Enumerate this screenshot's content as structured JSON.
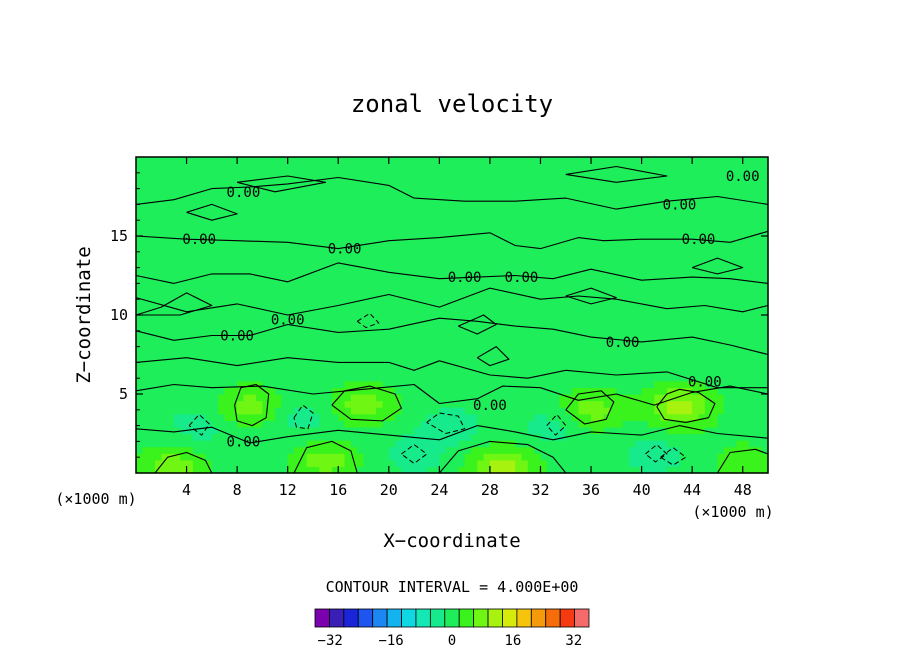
{
  "chart_data": {
    "type": "heatmap",
    "title": "zonal velocity",
    "xlabel": "X−coordinate",
    "ylabel": "Z−coordinate",
    "x_unit_left": "(×1000 m)",
    "x_unit_right": "(×1000 m)",
    "xlim": [
      0,
      50
    ],
    "ylim": [
      0,
      20
    ],
    "x_ticks": [
      4,
      8,
      12,
      16,
      20,
      24,
      28,
      32,
      36,
      40,
      44,
      48
    ],
    "y_ticks": [
      5,
      10,
      15
    ],
    "contour_interval_text": "CONTOUR INTERVAL = 4.000E+00",
    "contour_label": "0.00",
    "colorbar": {
      "tick_labels": [
        "−32",
        "−16",
        "0",
        "16",
        "32"
      ],
      "tick_values": [
        -32,
        -16,
        0,
        16,
        32
      ],
      "levels": [
        -36,
        -32,
        -28,
        -24,
        -20,
        -16,
        -12,
        -8,
        -4,
        0,
        4,
        8,
        12,
        16,
        20,
        24,
        28,
        32,
        36
      ],
      "colors": [
        "#7a00b0",
        "#3a1fb6",
        "#1a24d8",
        "#1f55ef",
        "#1b87f2",
        "#12b3ef",
        "#10d8e2",
        "#15e8b4",
        "#17ea8a",
        "#1eee5a",
        "#3af21c",
        "#6ff612",
        "#a7f20e",
        "#d6ea0c",
        "#f5c40b",
        "#f59a0a",
        "#f56e0a",
        "#f53a12",
        "#f56a6a"
      ]
    },
    "field_features": [
      {
        "x": 43,
        "z": 4.2,
        "value": 12
      },
      {
        "x": 29,
        "z": 0.4,
        "value": 12
      },
      {
        "x": 18,
        "z": 4.3,
        "value": 8
      },
      {
        "x": 9,
        "z": 4.2,
        "value": 8
      },
      {
        "x": 36,
        "z": 4.0,
        "value": 8
      },
      {
        "x": 15,
        "z": 0.8,
        "value": 8
      },
      {
        "x": 3,
        "z": 0.5,
        "value": 8
      },
      {
        "x": 48,
        "z": 0.8,
        "value": 4
      },
      {
        "x": 25,
        "z": 3.0,
        "value": -4
      },
      {
        "x": 13,
        "z": 3.5,
        "value": -4
      },
      {
        "x": 5,
        "z": 3.0,
        "value": -4
      },
      {
        "x": 33,
        "z": 3.0,
        "value": -4
      },
      {
        "x": 22,
        "z": 1.2,
        "value": -4
      },
      {
        "x": 41,
        "z": 1.2,
        "value": -4
      }
    ],
    "contour_label_positions": [
      {
        "x": 8.5,
        "z": 17.8
      },
      {
        "x": 5.0,
        "z": 14.8
      },
      {
        "x": 16.5,
        "z": 14.2
      },
      {
        "x": 26.0,
        "z": 12.4
      },
      {
        "x": 30.5,
        "z": 12.4
      },
      {
        "x": 12.0,
        "z": 9.7
      },
      {
        "x": 8.0,
        "z": 8.7
      },
      {
        "x": 38.5,
        "z": 8.3
      },
      {
        "x": 28.0,
        "z": 4.3
      },
      {
        "x": 45.0,
        "z": 5.8
      },
      {
        "x": 48.0,
        "z": 18.8
      },
      {
        "x": 43.0,
        "z": 17.0
      },
      {
        "x": 44.5,
        "z": 14.8
      },
      {
        "x": 8.5,
        "z": 2.0
      }
    ],
    "contour_lines": [
      [
        [
          0,
          17.0
        ],
        [
          3,
          17.3
        ],
        [
          6,
          18.0
        ],
        [
          9,
          18.1
        ],
        [
          12,
          18.3
        ],
        [
          16,
          18.7
        ],
        [
          20,
          18.2
        ],
        [
          22,
          17.4
        ]
      ],
      [
        [
          22,
          17.4
        ],
        [
          26,
          17.2
        ],
        [
          30,
          17.2
        ],
        [
          34,
          17.4
        ],
        [
          38,
          16.7
        ],
        [
          42,
          17.2
        ],
        [
          46,
          17.5
        ],
        [
          50,
          17.0
        ]
      ],
      [
        [
          0,
          15.0
        ],
        [
          4,
          14.8
        ],
        [
          8,
          14.7
        ],
        [
          12,
          14.6
        ],
        [
          16,
          14.2
        ],
        [
          20,
          14.7
        ],
        [
          24,
          14.9
        ],
        [
          28,
          15.2
        ]
      ],
      [
        [
          28,
          15.2
        ],
        [
          30,
          14.4
        ],
        [
          32,
          14.2
        ],
        [
          35,
          14.9
        ],
        [
          37,
          14.7
        ],
        [
          40,
          14.8
        ],
        [
          44,
          14.8
        ],
        [
          47,
          14.6
        ],
        [
          50,
          15.3
        ]
      ],
      [
        [
          0,
          12.5
        ],
        [
          3,
          12.0
        ],
        [
          6,
          12.6
        ],
        [
          9,
          12.6
        ],
        [
          12,
          12.1
        ],
        [
          16,
          13.3
        ],
        [
          20,
          12.7
        ],
        [
          24,
          12.3
        ],
        [
          27,
          12.4
        ]
      ],
      [
        [
          27,
          12.4
        ],
        [
          30,
          12.5
        ],
        [
          33,
          12.3
        ],
        [
          36,
          12.9
        ],
        [
          40,
          12.2
        ],
        [
          44,
          12.4
        ],
        [
          47,
          12.3
        ],
        [
          50,
          12.0
        ]
      ],
      [
        [
          0,
          11.1
        ],
        [
          4,
          10.2
        ],
        [
          8,
          10.7
        ],
        [
          12,
          10.0
        ],
        [
          16,
          10.6
        ],
        [
          20,
          11.3
        ],
        [
          24,
          10.5
        ],
        [
          28,
          11.7
        ],
        [
          32,
          11.0
        ]
      ],
      [
        [
          32,
          11.0
        ],
        [
          35,
          11.2
        ],
        [
          38,
          11.0
        ],
        [
          42,
          10.4
        ],
        [
          45,
          10.6
        ],
        [
          48,
          10.2
        ],
        [
          50,
          10.6
        ]
      ],
      [
        [
          0,
          9.0
        ],
        [
          3,
          8.4
        ],
        [
          6,
          8.7
        ],
        [
          9,
          8.7
        ],
        [
          12,
          9.4
        ],
        [
          16,
          8.9
        ],
        [
          20,
          9.1
        ],
        [
          24,
          9.8
        ],
        [
          27,
          9.6
        ]
      ],
      [
        [
          27,
          9.6
        ],
        [
          30,
          9.3
        ],
        [
          33,
          9.1
        ],
        [
          36,
          8.6
        ],
        [
          40,
          8.3
        ],
        [
          44,
          8.6
        ],
        [
          47,
          8.1
        ],
        [
          50,
          7.5
        ]
      ],
      [
        [
          0,
          7.0
        ],
        [
          4,
          7.3
        ],
        [
          8,
          6.8
        ],
        [
          12,
          7.3
        ],
        [
          16,
          7.0
        ],
        [
          20,
          7.0
        ],
        [
          22,
          6.5
        ],
        [
          24,
          7.1
        ]
      ],
      [
        [
          24,
          7.1
        ],
        [
          28,
          6.2
        ],
        [
          31,
          6.0
        ],
        [
          34,
          6.5
        ],
        [
          38,
          6.2
        ],
        [
          42,
          6.4
        ],
        [
          46,
          5.4
        ],
        [
          50,
          5.4
        ]
      ],
      [
        [
          0,
          5.2
        ],
        [
          3,
          5.6
        ],
        [
          6,
          5.4
        ],
        [
          10,
          5.5
        ],
        [
          14,
          5.0
        ],
        [
          18,
          5.3
        ],
        [
          22,
          5.6
        ],
        [
          24,
          4.4
        ],
        [
          27,
          4.7
        ]
      ],
      [
        [
          27,
          4.7
        ],
        [
          29,
          5.5
        ],
        [
          32,
          5.4
        ],
        [
          35,
          4.6
        ],
        [
          38,
          5.0
        ],
        [
          41,
          4.3
        ],
        [
          44,
          5.1
        ],
        [
          47,
          5.5
        ],
        [
          50,
          5.0
        ]
      ],
      [
        [
          0,
          2.8
        ],
        [
          3,
          2.6
        ],
        [
          6,
          2.9
        ],
        [
          9,
          1.9
        ],
        [
          12,
          2.3
        ],
        [
          16,
          2.7
        ],
        [
          20,
          2.4
        ],
        [
          24,
          2.1
        ],
        [
          27,
          3.0
        ]
      ],
      [
        [
          27,
          3.0
        ],
        [
          30,
          2.6
        ],
        [
          33,
          2.1
        ],
        [
          36,
          2.6
        ],
        [
          40,
          2.4
        ],
        [
          43,
          3.0
        ],
        [
          46,
          2.5
        ],
        [
          50,
          2.2
        ]
      ],
      [
        [
          41.2,
          4.2
        ],
        [
          42,
          5.0
        ],
        [
          43,
          5.3
        ],
        [
          44.5,
          5.1
        ],
        [
          45.8,
          4.4
        ],
        [
          45.3,
          3.5
        ],
        [
          43.5,
          3.2
        ],
        [
          41.8,
          3.4
        ],
        [
          41.2,
          4.2
        ]
      ],
      [
        [
          15.5,
          4.3
        ],
        [
          16.5,
          5.2
        ],
        [
          18.5,
          5.5
        ],
        [
          20.5,
          5.0
        ],
        [
          21.0,
          4.1
        ],
        [
          19.5,
          3.3
        ],
        [
          17.0,
          3.4
        ],
        [
          15.5,
          4.3
        ]
      ],
      [
        [
          7.8,
          4.3
        ],
        [
          8.3,
          5.4
        ],
        [
          9.5,
          5.6
        ],
        [
          10.5,
          5.0
        ],
        [
          10.3,
          3.5
        ],
        [
          9.2,
          3.0
        ],
        [
          8.0,
          3.3
        ],
        [
          7.8,
          4.3
        ]
      ],
      [
        [
          34.0,
          4.0
        ],
        [
          35.0,
          5.0
        ],
        [
          36.8,
          5.2
        ],
        [
          37.8,
          4.5
        ],
        [
          37.2,
          3.4
        ],
        [
          35.5,
          3.1
        ],
        [
          34.0,
          4.0
        ]
      ],
      [
        [
          24.0,
          0.0
        ],
        [
          25.5,
          1.4
        ],
        [
          28.0,
          2.0
        ],
        [
          31.0,
          1.8
        ],
        [
          33.0,
          1.0
        ],
        [
          34.0,
          0.0
        ]
      ],
      [
        [
          12.5,
          0.0
        ],
        [
          13.5,
          1.6
        ],
        [
          15.5,
          2.0
        ],
        [
          17.0,
          1.4
        ],
        [
          17.5,
          0.0
        ]
      ],
      [
        [
          1.5,
          0.0
        ],
        [
          2.5,
          1.0
        ],
        [
          4.0,
          1.3
        ],
        [
          5.5,
          0.8
        ],
        [
          6.0,
          0.0
        ]
      ],
      [
        [
          46.0,
          0.0
        ],
        [
          47.0,
          1.3
        ],
        [
          49.0,
          1.5
        ],
        [
          50,
          1.2
        ]
      ],
      [
        [
          0,
          10.0
        ],
        [
          2,
          10.5
        ],
        [
          4,
          11.4
        ],
        [
          6,
          10.6
        ],
        [
          3.5,
          10.0
        ],
        [
          0,
          10.0
        ]
      ],
      [
        [
          34,
          11.2
        ],
        [
          36,
          11.7
        ],
        [
          38,
          11.1
        ],
        [
          36,
          10.7
        ],
        [
          34,
          11.2
        ]
      ],
      [
        [
          25.5,
          9.3
        ],
        [
          27.5,
          10.0
        ],
        [
          28.5,
          9.4
        ],
        [
          27,
          8.8
        ],
        [
          25.5,
          9.3
        ]
      ],
      [
        [
          27.0,
          7.3
        ],
        [
          28.5,
          8.0
        ],
        [
          29.5,
          7.2
        ],
        [
          28.0,
          6.8
        ],
        [
          27.0,
          7.3
        ]
      ],
      [
        [
          8,
          18.4
        ],
        [
          12,
          18.8
        ],
        [
          15,
          18.4
        ],
        [
          11,
          17.8
        ],
        [
          8,
          18.4
        ]
      ],
      [
        [
          34,
          18.9
        ],
        [
          38,
          19.4
        ],
        [
          42,
          18.8
        ],
        [
          38,
          18.4
        ],
        [
          34,
          18.9
        ]
      ],
      [
        [
          44,
          13.0
        ],
        [
          46,
          13.6
        ],
        [
          48,
          13.0
        ],
        [
          46,
          12.6
        ],
        [
          44,
          13.0
        ]
      ],
      [
        [
          4,
          16.5
        ],
        [
          6,
          17.0
        ],
        [
          8,
          16.4
        ],
        [
          6,
          16.0
        ],
        [
          4,
          16.5
        ]
      ]
    ],
    "dashed_contours": [
      [
        [
          23.0,
          3.2
        ],
        [
          24.0,
          3.8
        ],
        [
          25.5,
          3.6
        ],
        [
          26.0,
          2.8
        ],
        [
          24.5,
          2.5
        ],
        [
          23.0,
          3.2
        ]
      ],
      [
        [
          12.5,
          3.5
        ],
        [
          13.2,
          4.3
        ],
        [
          14.0,
          3.8
        ],
        [
          13.6,
          2.8
        ],
        [
          12.7,
          2.9
        ],
        [
          12.5,
          3.5
        ]
      ],
      [
        [
          4.2,
          3.0
        ],
        [
          5.0,
          3.7
        ],
        [
          5.8,
          3.1
        ],
        [
          5.2,
          2.4
        ],
        [
          4.2,
          3.0
        ]
      ],
      [
        [
          32.5,
          3.0
        ],
        [
          33.3,
          3.7
        ],
        [
          34.0,
          3.0
        ],
        [
          33.2,
          2.4
        ],
        [
          32.5,
          3.0
        ]
      ],
      [
        [
          21.0,
          1.2
        ],
        [
          22.0,
          1.8
        ],
        [
          23.0,
          1.2
        ],
        [
          22.0,
          0.6
        ],
        [
          21.0,
          1.2
        ]
      ],
      [
        [
          40.3,
          1.2
        ],
        [
          41.2,
          1.8
        ],
        [
          42.0,
          1.2
        ],
        [
          41.1,
          0.7
        ],
        [
          40.3,
          1.2
        ]
      ],
      [
        [
          17.5,
          9.6
        ],
        [
          18.5,
          10.1
        ],
        [
          19.2,
          9.5
        ],
        [
          18.2,
          9.2
        ],
        [
          17.5,
          9.6
        ]
      ],
      [
        [
          41.5,
          1.0
        ],
        [
          42.5,
          1.6
        ],
        [
          43.5,
          1.0
        ],
        [
          42.5,
          0.5
        ],
        [
          41.5,
          1.0
        ]
      ]
    ]
  }
}
